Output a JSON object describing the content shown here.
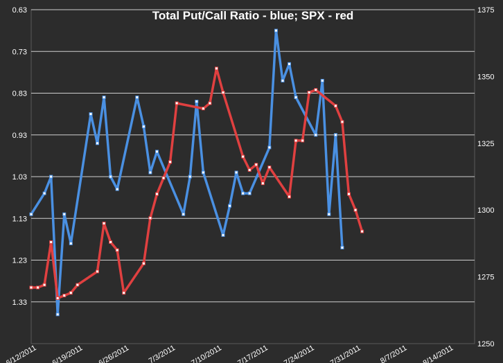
{
  "chart_data": {
    "type": "line",
    "title": "Total Put/Call Ratio - blue; SPX - red",
    "xlabel": "",
    "ylabel": "",
    "grid": true,
    "legend": "none",
    "x_axis": {
      "type": "date",
      "range": [
        "2011-06-12",
        "2011-08-18"
      ],
      "ticks": [
        "6/12/2011",
        "6/19/2011",
        "6/26/2011",
        "7/3/2011",
        "7/10/2011",
        "7/17/2011",
        "7/24/2011",
        "7/31/2011",
        "8/7/2011",
        "8/14/2011"
      ]
    },
    "y_left": {
      "range": [
        0.63,
        1.43
      ],
      "inverted": true,
      "ticks": [
        "0.63",
        "0.73",
        "0.83",
        "0.93",
        "1.03",
        "1.13",
        "1.23",
        "1.33"
      ]
    },
    "y_right": {
      "range": [
        1250,
        1375
      ],
      "ticks": [
        "1250",
        "1275",
        "1300",
        "1325",
        "1350",
        "1375"
      ]
    },
    "series": [
      {
        "name": "Total Put/Call Ratio",
        "axis": "left",
        "color": "#4a90e2",
        "points": [
          [
            "2011-06-12",
            1.12
          ],
          [
            "2011-06-14",
            1.07
          ],
          [
            "2011-06-15",
            1.03
          ],
          [
            "2011-06-16",
            1.36
          ],
          [
            "2011-06-17",
            1.12
          ],
          [
            "2011-06-18",
            1.19
          ],
          [
            "2011-06-21",
            0.88
          ],
          [
            "2011-06-22",
            0.95
          ],
          [
            "2011-06-23",
            0.84
          ],
          [
            "2011-06-24",
            1.03
          ],
          [
            "2011-06-25",
            1.06
          ],
          [
            "2011-06-28",
            0.84
          ],
          [
            "2011-06-29",
            0.91
          ],
          [
            "2011-06-30",
            1.02
          ],
          [
            "2011-07-01",
            0.97
          ],
          [
            "2011-07-05",
            1.12
          ],
          [
            "2011-07-06",
            1.03
          ],
          [
            "2011-07-07",
            0.85
          ],
          [
            "2011-07-08",
            1.02
          ],
          [
            "2011-07-11",
            1.17
          ],
          [
            "2011-07-12",
            1.1
          ],
          [
            "2011-07-13",
            1.02
          ],
          [
            "2011-07-14",
            1.07
          ],
          [
            "2011-07-15",
            1.07
          ],
          [
            "2011-07-18",
            0.96
          ],
          [
            "2011-07-19",
            0.68
          ],
          [
            "2011-07-20",
            0.8
          ],
          [
            "2011-07-21",
            0.76
          ],
          [
            "2011-07-22",
            0.84
          ],
          [
            "2011-07-25",
            0.93
          ],
          [
            "2011-07-26",
            0.8
          ],
          [
            "2011-07-27",
            1.12
          ],
          [
            "2011-07-28",
            0.93
          ],
          [
            "2011-07-29",
            1.2
          ]
        ]
      },
      {
        "name": "SPX",
        "axis": "right",
        "color": "#e04040",
        "points": [
          [
            "2011-06-12",
            1271
          ],
          [
            "2011-06-13",
            1271
          ],
          [
            "2011-06-14",
            1272
          ],
          [
            "2011-06-15",
            1288
          ],
          [
            "2011-06-16",
            1267
          ],
          [
            "2011-06-17",
            1268
          ],
          [
            "2011-06-18",
            1269
          ],
          [
            "2011-06-19",
            1272
          ],
          [
            "2011-06-22",
            1277
          ],
          [
            "2011-06-23",
            1295
          ],
          [
            "2011-06-24",
            1288
          ],
          [
            "2011-06-25",
            1285
          ],
          [
            "2011-06-26",
            1269
          ],
          [
            "2011-06-29",
            1280
          ],
          [
            "2011-06-30",
            1297
          ],
          [
            "2011-07-01",
            1306
          ],
          [
            "2011-07-02",
            1312
          ],
          [
            "2011-07-03",
            1318
          ],
          [
            "2011-07-04",
            1340
          ],
          [
            "2011-07-08",
            1338
          ],
          [
            "2011-07-09",
            1340
          ],
          [
            "2011-07-10",
            1353
          ],
          [
            "2011-07-11",
            1344
          ],
          [
            "2011-07-14",
            1320
          ],
          [
            "2011-07-15",
            1315
          ],
          [
            "2011-07-16",
            1317
          ],
          [
            "2011-07-17",
            1310
          ],
          [
            "2011-07-18",
            1316
          ],
          [
            "2011-07-21",
            1305
          ],
          [
            "2011-07-22",
            1326
          ],
          [
            "2011-07-23",
            1326
          ],
          [
            "2011-07-24",
            1344
          ],
          [
            "2011-07-25",
            1345
          ],
          [
            "2011-07-28",
            1339
          ],
          [
            "2011-07-29",
            1333
          ],
          [
            "2011-07-30",
            1306
          ],
          [
            "2011-07-31",
            1300
          ],
          [
            "2011-08-01",
            1292
          ]
        ]
      }
    ]
  }
}
